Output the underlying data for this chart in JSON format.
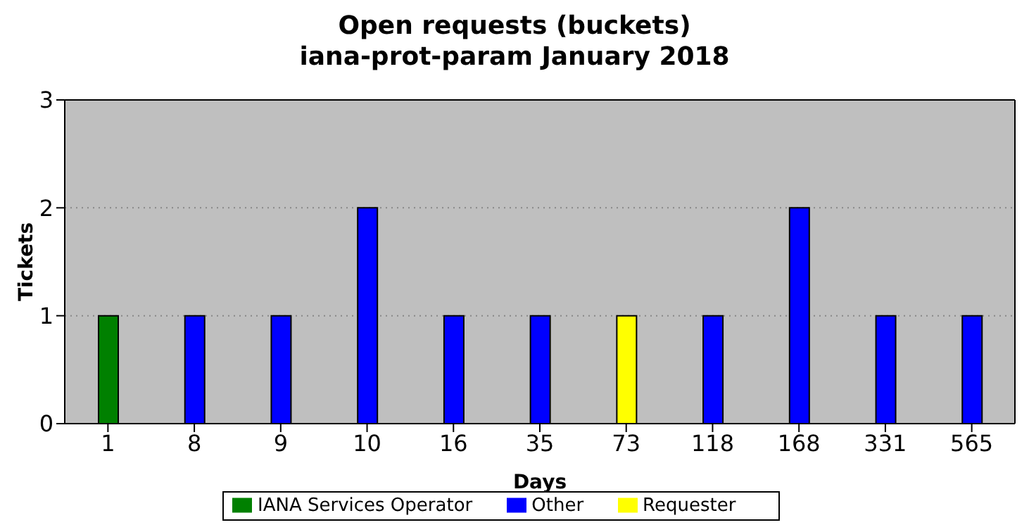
{
  "chart_data": {
    "type": "bar",
    "title": "Open requests (buckets)",
    "subtitle": "iana-prot-param January 2018",
    "xlabel": "Days",
    "ylabel": "Tickets",
    "categories": [
      "1",
      "8",
      "9",
      "10",
      "16",
      "35",
      "73",
      "118",
      "168",
      "331",
      "565"
    ],
    "series": [
      {
        "name": "IANA Services Operator",
        "color": "#008000",
        "values": [
          1,
          null,
          null,
          null,
          null,
          null,
          null,
          null,
          null,
          null,
          null
        ]
      },
      {
        "name": "Other",
        "color": "#0000ff",
        "values": [
          null,
          1,
          1,
          2,
          1,
          1,
          null,
          1,
          2,
          1,
          1
        ]
      },
      {
        "name": "Requester",
        "color": "#ffff00",
        "values": [
          null,
          null,
          null,
          null,
          null,
          null,
          1,
          null,
          null,
          null,
          null
        ]
      }
    ],
    "stacked": true,
    "ylim": [
      0,
      3
    ],
    "yticks": [
      0,
      1,
      2,
      3
    ],
    "grid": "y",
    "legend": "bottom"
  }
}
